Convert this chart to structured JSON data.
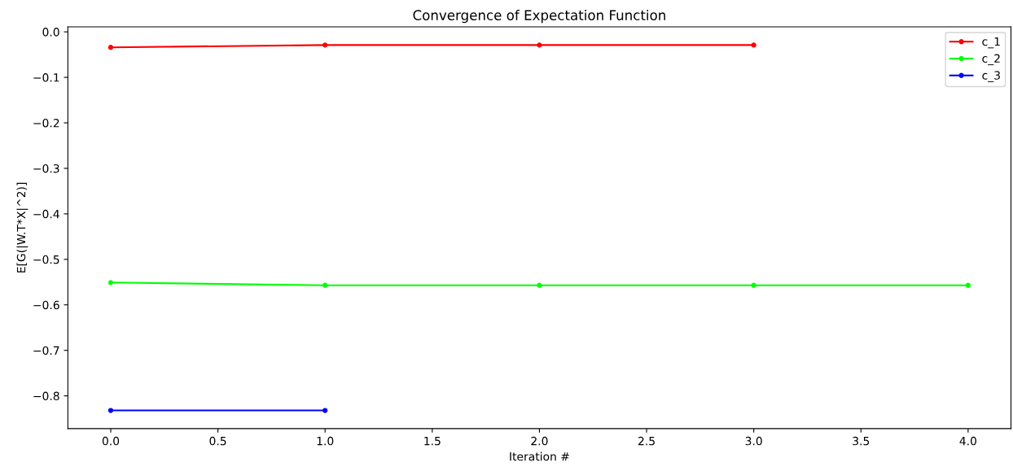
{
  "chart_data": {
    "type": "line",
    "title": "Convergence of Expectation Function",
    "xlabel": "Iteration #",
    "ylabel": "E[G(|W.T*X|^2)]",
    "series": [
      {
        "name": "c_1",
        "color": "#ff0000",
        "x": [
          0,
          1,
          2,
          3
        ],
        "values": [
          -0.034,
          -0.029,
          -0.029,
          -0.029
        ]
      },
      {
        "name": "c_2",
        "color": "#00ff00",
        "x": [
          0,
          1,
          2,
          3,
          4
        ],
        "values": [
          -0.551,
          -0.557,
          -0.557,
          -0.557,
          -0.557
        ]
      },
      {
        "name": "c_3",
        "color": "#0000ff",
        "x": [
          0,
          1
        ],
        "values": [
          -0.832,
          -0.832
        ]
      }
    ],
    "xlim": [
      -0.2,
      4.2
    ],
    "ylim": [
      -0.872,
      0.011
    ],
    "xticks": [
      {
        "value": 0,
        "label": "0.0"
      },
      {
        "value": 0.5,
        "label": "0.5"
      },
      {
        "value": 1,
        "label": "1.0"
      },
      {
        "value": 1.5,
        "label": "1.5"
      },
      {
        "value": 2,
        "label": "2.0"
      },
      {
        "value": 2.5,
        "label": "2.5"
      },
      {
        "value": 3,
        "label": "3.0"
      },
      {
        "value": 3.5,
        "label": "3.5"
      },
      {
        "value": 4,
        "label": "4.0"
      }
    ],
    "yticks": [
      {
        "value": -0.8,
        "label": "−0.8"
      },
      {
        "value": -0.7,
        "label": "−0.7"
      },
      {
        "value": -0.6,
        "label": "−0.6"
      },
      {
        "value": -0.5,
        "label": "−0.5"
      },
      {
        "value": -0.4,
        "label": "−0.4"
      },
      {
        "value": -0.3,
        "label": "−0.3"
      },
      {
        "value": -0.2,
        "label": "−0.2"
      },
      {
        "value": -0.1,
        "label": "−0.1"
      },
      {
        "value": 0,
        "label": "0.0"
      }
    ],
    "marker": "circle",
    "line_style": "solid",
    "legend": "top right",
    "grid": false
  }
}
